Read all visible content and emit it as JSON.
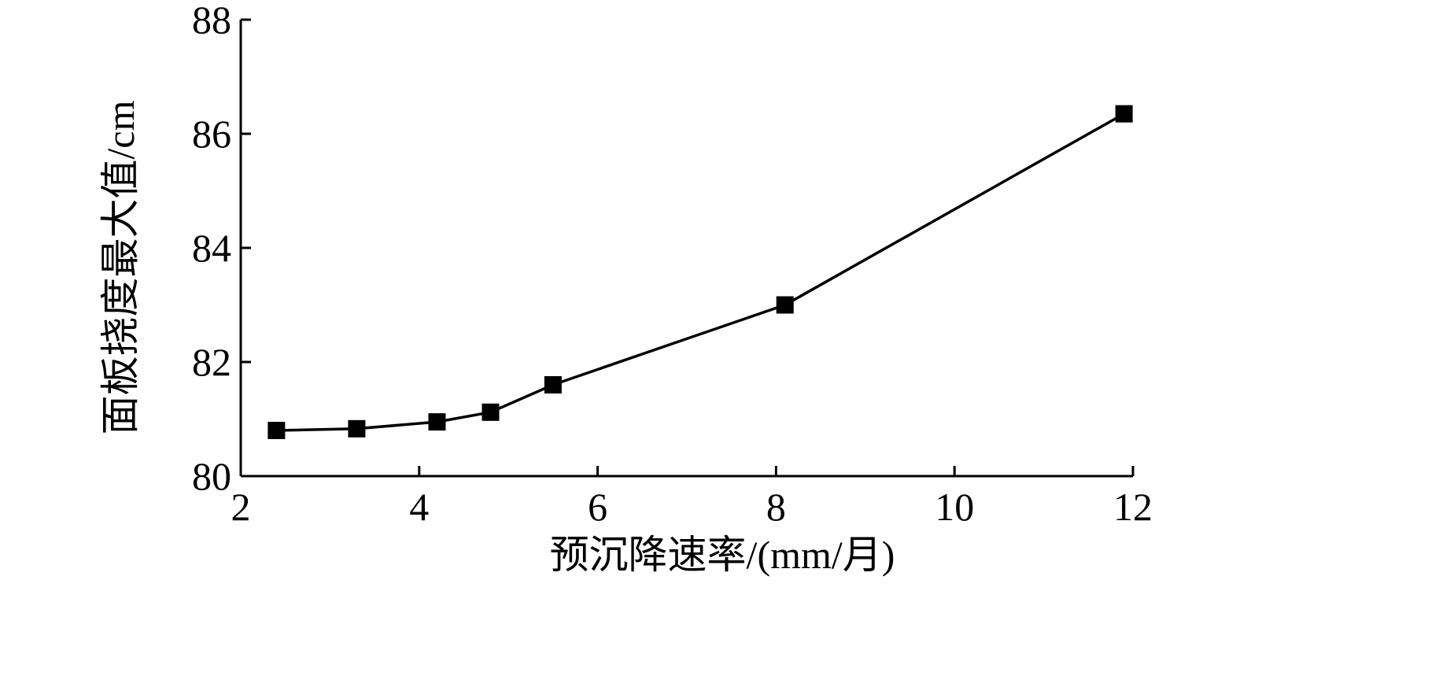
{
  "chart_data": {
    "type": "line",
    "title": "",
    "xlabel": "预沉降速率/(mm/月)",
    "ylabel": "面板挠度最大值/cm",
    "xlim": [
      2,
      12
    ],
    "ylim": [
      80,
      88
    ],
    "xticks": [
      2,
      4,
      6,
      8,
      10,
      12
    ],
    "yticks": [
      80,
      82,
      84,
      86,
      88
    ],
    "grid": false,
    "legend": "none",
    "marker": "square",
    "color": "#000000",
    "series": [
      {
        "x": [
          2.4,
          3.3,
          4.2,
          4.8,
          5.5,
          8.1,
          11.9
        ],
        "y": [
          80.8,
          80.83,
          80.95,
          81.12,
          81.6,
          83.0,
          86.35
        ]
      }
    ]
  }
}
